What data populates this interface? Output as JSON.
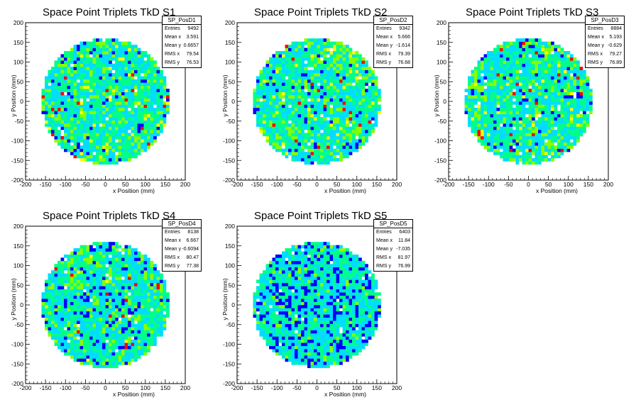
{
  "chart_data": [
    {
      "type": "heatmap",
      "title": "Space Point Triplets TkD S1",
      "xlabel": "x Position (mm)",
      "ylabel": "y Position (mm)",
      "xlim": [
        -200,
        200
      ],
      "ylim": [
        -200,
        200
      ],
      "xticks": [
        -200,
        -150,
        -100,
        -50,
        0,
        50,
        100,
        150,
        200
      ],
      "yticks": [
        -200,
        -150,
        -100,
        -50,
        0,
        50,
        100,
        150,
        200
      ],
      "detector_radius_mm": 160,
      "stats": {
        "name": "SP_PosD1",
        "entries": "9492",
        "mean_x": "3.591",
        "mean_y": "0.6657",
        "rms_x": "79.54",
        "rms_y": "76.53"
      }
    },
    {
      "type": "heatmap",
      "title": "Space Point Triplets TkD S2",
      "xlabel": "x Position (mm)",
      "ylabel": "y Position (mm)",
      "xlim": [
        -200,
        200
      ],
      "ylim": [
        -200,
        200
      ],
      "xticks": [
        -200,
        -150,
        -100,
        -50,
        0,
        50,
        100,
        150,
        200
      ],
      "yticks": [
        -200,
        -150,
        -100,
        -50,
        0,
        50,
        100,
        150,
        200
      ],
      "detector_radius_mm": 160,
      "stats": {
        "name": "SP_PosD2",
        "entries": "9342",
        "mean_x": "5.666",
        "mean_y": "-1.614",
        "rms_x": "79.39",
        "rms_y": "76.68"
      }
    },
    {
      "type": "heatmap",
      "title": "Space Point Triplets TkD S3",
      "xlabel": "x Position (mm)",
      "ylabel": "y Position (mm)",
      "xlim": [
        -200,
        200
      ],
      "ylim": [
        -200,
        200
      ],
      "xticks": [
        -200,
        -150,
        -100,
        -50,
        0,
        50,
        100,
        150,
        200
      ],
      "yticks": [
        -200,
        -150,
        -100,
        -50,
        0,
        50,
        100,
        150,
        200
      ],
      "detector_radius_mm": 160,
      "stats": {
        "name": "SP_PosD3",
        "entries": "8884",
        "mean_x": "5.193",
        "mean_y": "-0.629",
        "rms_x": "79.27",
        "rms_y": "76.89"
      }
    },
    {
      "type": "heatmap",
      "title": "Space Point Triplets TkD S4",
      "xlabel": "x Position (mm)",
      "ylabel": "y Position (mm)",
      "xlim": [
        -200,
        200
      ],
      "ylim": [
        -200,
        200
      ],
      "xticks": [
        -200,
        -150,
        -100,
        -50,
        0,
        50,
        100,
        150,
        200
      ],
      "yticks": [
        -200,
        -150,
        -100,
        -50,
        0,
        50,
        100,
        150,
        200
      ],
      "detector_radius_mm": 160,
      "stats": {
        "name": "SP_PosD4",
        "entries": "8138",
        "mean_x": "6.667",
        "mean_y": "-0.6094",
        "rms_x": "80.47",
        "rms_y": "77.38"
      }
    },
    {
      "type": "heatmap",
      "title": "Space Point Triplets TkD S5",
      "xlabel": "x Position (mm)",
      "ylabel": "y Position (mm)",
      "xlim": [
        -200,
        200
      ],
      "ylim": [
        -200,
        200
      ],
      "xticks": [
        -200,
        -150,
        -100,
        -50,
        0,
        50,
        100,
        150,
        200
      ],
      "yticks": [
        -200,
        -150,
        -100,
        -50,
        0,
        50,
        100,
        150,
        200
      ],
      "detector_radius_mm": 160,
      "stats": {
        "name": "SP_PosD5",
        "entries": "6403",
        "mean_x": "11.84",
        "mean_y": "-7.035",
        "rms_x": "81.97",
        "rms_y": "76.99"
      }
    }
  ],
  "stat_labels": {
    "entries": "Entries",
    "mean_x": "Mean x",
    "mean_y": "Mean y",
    "rms_x": "RMS x",
    "rms_y": "RMS y"
  },
  "colors": {
    "palette": [
      "#0000ff",
      "#00ddff",
      "#00ff88",
      "#88ff00",
      "#ffff00",
      "#ff0000"
    ]
  }
}
